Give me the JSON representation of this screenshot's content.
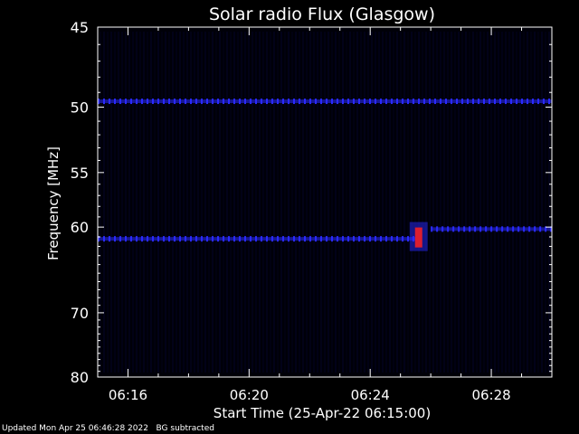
{
  "chart_data": {
    "type": "heatmap",
    "title": "Solar radio Flux (Glasgow)",
    "xlabel": "Start Time (25-Apr-22 06:15:00)",
    "ylabel": "Frequency [MHz]",
    "x_tick_labels": [
      "06:16",
      "06:20",
      "06:24",
      "06:28"
    ],
    "x_tick_values_min": [
      1,
      5,
      9,
      13
    ],
    "xlim_min": [
      0,
      15
    ],
    "y_tick_labels": [
      "45",
      "50",
      "55",
      "60",
      "70",
      "80"
    ],
    "y_tick_values": [
      45,
      50,
      55,
      60,
      70,
      80
    ],
    "ylim": [
      45,
      80
    ],
    "y_scale": "reciprocal",
    "features": [
      {
        "kind": "band",
        "freq_mhz": 49.6,
        "t_start_min": 0,
        "t_end_min": 15
      },
      {
        "kind": "band",
        "freq_mhz": 61.2,
        "t_start_min": 0,
        "t_end_min": 10.5
      },
      {
        "kind": "band",
        "freq_mhz": 60.2,
        "t_start_min": 11,
        "t_end_min": 15
      },
      {
        "kind": "burst",
        "freq_range_mhz": [
          59.5,
          62.5
        ],
        "t_min": 10.6
      }
    ],
    "colors": {
      "background": "#000000",
      "band": "#2a2aff",
      "burst": "#ff2020"
    }
  },
  "footer": {
    "updated": "Updated Mon Apr 25 06:46:28 2022",
    "note": "BG subtracted"
  }
}
